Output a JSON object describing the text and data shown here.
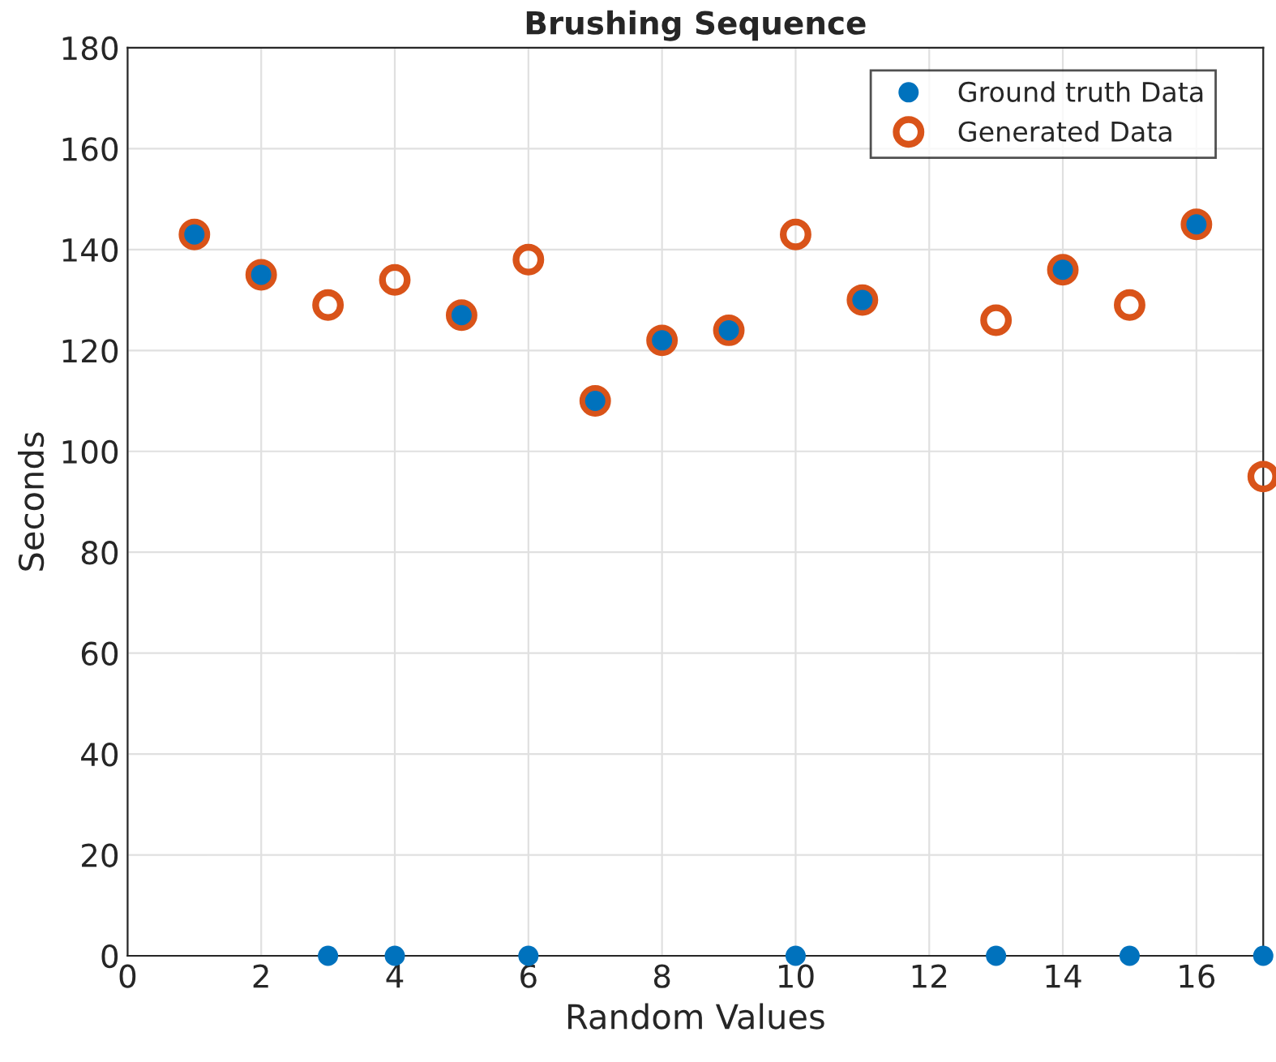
{
  "chart_data": {
    "type": "scatter",
    "title": "Brushing Sequence",
    "xlabel": "Random Values",
    "ylabel": "Seconds",
    "series": [
      {
        "name": "Ground truth Data",
        "color": "#0072bd",
        "marker": "circle",
        "x": [
          1,
          2,
          3,
          4,
          5,
          6,
          7,
          8,
          9,
          10,
          11,
          13,
          14,
          15,
          16,
          17
        ],
        "values": [
          143,
          135,
          0,
          0,
          127,
          0,
          110,
          122,
          124,
          0,
          130,
          0,
          136,
          0,
          145,
          0
        ]
      },
      {
        "name": "Generated Data",
        "color": "#d95319",
        "marker": "circle",
        "x": [
          1,
          2,
          3,
          4,
          5,
          6,
          7,
          8,
          9,
          10,
          11,
          13,
          14,
          15,
          16,
          17
        ],
        "values": [
          143,
          135,
          129,
          134,
          127,
          138,
          110,
          122,
          124,
          143,
          130,
          126,
          136,
          129,
          145,
          95
        ]
      }
    ],
    "xlim": [
      0,
      17
    ],
    "xticks": [
      0,
      2,
      4,
      6,
      8,
      10,
      12,
      14,
      16
    ],
    "ylim": [
      0,
      180
    ],
    "yticks": [
      0,
      20,
      40,
      60,
      80,
      100,
      120,
      140,
      160,
      180
    ],
    "grid": true,
    "legend": "top right"
  }
}
